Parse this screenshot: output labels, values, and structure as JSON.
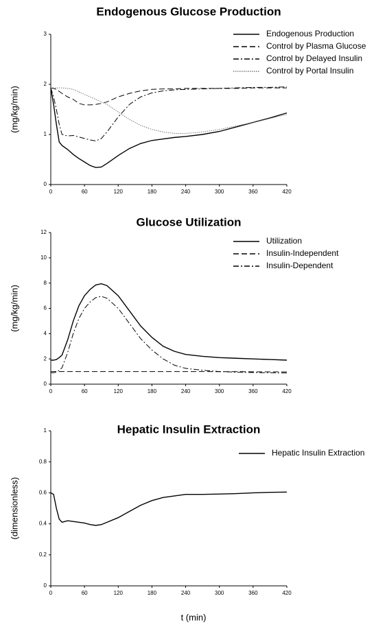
{
  "chart_data": [
    {
      "type": "line",
      "title": "Endogenous Glucose Production",
      "ylabel": "(mg/kg/min)",
      "x": [
        0,
        5,
        10,
        15,
        20,
        30,
        40,
        50,
        60,
        70,
        80,
        90,
        100,
        120,
        140,
        160,
        180,
        200,
        220,
        240,
        270,
        300,
        330,
        360,
        390,
        420
      ],
      "xlim": [
        0,
        420
      ],
      "xticks": [
        0,
        60,
        120,
        180,
        240,
        300,
        360,
        420
      ],
      "ylim": [
        0,
        3
      ],
      "yticks": [
        0,
        1,
        2,
        3
      ],
      "grid": false,
      "legend": "upper right",
      "series": [
        {
          "name": "Endogenous Production",
          "color": "#000000",
          "style": "solid",
          "values": [
            1.93,
            1.6,
            1.2,
            0.85,
            0.78,
            0.7,
            0.6,
            0.52,
            0.45,
            0.38,
            0.34,
            0.35,
            0.42,
            0.58,
            0.72,
            0.82,
            0.88,
            0.91,
            0.94,
            0.96,
            1.0,
            1.06,
            1.15,
            1.24,
            1.33,
            1.43
          ]
        },
        {
          "name": "Control by Plasma Glucose",
          "color": "#000000",
          "style": "dashed",
          "values": [
            1.93,
            1.92,
            1.9,
            1.86,
            1.82,
            1.75,
            1.7,
            1.62,
            1.59,
            1.59,
            1.6,
            1.62,
            1.65,
            1.75,
            1.82,
            1.87,
            1.9,
            1.91,
            1.91,
            1.92,
            1.92,
            1.92,
            1.92,
            1.93,
            1.93,
            1.93
          ]
        },
        {
          "name": "Control by Delayed Insulin",
          "color": "#000000",
          "style": "dashdot",
          "values": [
            1.93,
            1.75,
            1.5,
            1.2,
            1.0,
            0.97,
            0.98,
            0.95,
            0.92,
            0.89,
            0.87,
            0.92,
            1.05,
            1.35,
            1.6,
            1.75,
            1.83,
            1.87,
            1.89,
            1.9,
            1.91,
            1.92,
            1.93,
            1.94,
            1.94,
            1.95
          ]
        },
        {
          "name": "Control by Portal Insulin",
          "color": "#777777",
          "style": "dotted",
          "values": [
            1.93,
            1.93,
            1.93,
            1.93,
            1.93,
            1.92,
            1.9,
            1.85,
            1.8,
            1.75,
            1.7,
            1.65,
            1.6,
            1.45,
            1.3,
            1.18,
            1.1,
            1.05,
            1.02,
            1.02,
            1.05,
            1.1,
            1.17,
            1.24,
            1.32,
            1.4
          ]
        }
      ]
    },
    {
      "type": "line",
      "title": "Glucose Utilization",
      "ylabel": "(mg/kg/min)",
      "x": [
        0,
        5,
        10,
        15,
        20,
        30,
        40,
        50,
        60,
        70,
        80,
        90,
        100,
        120,
        140,
        160,
        180,
        200,
        220,
        240,
        270,
        300,
        330,
        360,
        390,
        420
      ],
      "xlim": [
        0,
        420
      ],
      "xticks": [
        0,
        60,
        120,
        180,
        240,
        300,
        360,
        420
      ],
      "ylim": [
        0,
        12
      ],
      "yticks": [
        0,
        2,
        4,
        6,
        8,
        10,
        12
      ],
      "grid": false,
      "legend": "upper right",
      "series": [
        {
          "name": "Utilization",
          "color": "#000000",
          "style": "solid",
          "values": [
            1.9,
            1.9,
            1.95,
            2.1,
            2.3,
            3.5,
            5.0,
            6.2,
            7.0,
            7.5,
            7.85,
            7.95,
            7.8,
            7.0,
            5.8,
            4.6,
            3.7,
            3.0,
            2.6,
            2.35,
            2.2,
            2.1,
            2.05,
            2.0,
            1.95,
            1.9
          ]
        },
        {
          "name": "Insulin-Independent",
          "color": "#000000",
          "style": "dashed",
          "values": [
            1.0,
            1.0,
            1.0,
            1.0,
            1.0,
            1.0,
            1.0,
            1.0,
            1.0,
            1.0,
            1.0,
            1.0,
            1.0,
            1.0,
            1.0,
            1.0,
            1.0,
            1.0,
            1.0,
            1.0,
            1.0,
            0.99,
            0.99,
            0.98,
            0.98,
            0.97
          ]
        },
        {
          "name": "Insulin-Dependent",
          "color": "#000000",
          "style": "dashdot",
          "values": [
            0.9,
            0.9,
            0.95,
            1.1,
            1.3,
            2.5,
            4.0,
            5.2,
            6.0,
            6.5,
            6.85,
            6.95,
            6.8,
            6.0,
            4.8,
            3.6,
            2.7,
            2.0,
            1.5,
            1.25,
            1.1,
            1.0,
            0.95,
            0.92,
            0.9,
            0.88
          ]
        }
      ]
    },
    {
      "type": "line",
      "title": "Hepatic Insulin Extraction",
      "ylabel": "(dimensionless)",
      "xlabel": "t (min)",
      "x": [
        0,
        5,
        10,
        15,
        20,
        30,
        40,
        50,
        60,
        70,
        80,
        90,
        100,
        120,
        140,
        160,
        180,
        200,
        220,
        240,
        270,
        300,
        330,
        360,
        390,
        420
      ],
      "xlim": [
        0,
        420
      ],
      "xticks": [
        0,
        60,
        120,
        180,
        240,
        300,
        360,
        420
      ],
      "ylim": [
        0,
        1
      ],
      "yticks": [
        0,
        0.2,
        0.4,
        0.6,
        0.8,
        1
      ],
      "grid": false,
      "legend": "upper right",
      "series": [
        {
          "name": "Hepatic Insulin Extraction",
          "color": "#000000",
          "style": "solid",
          "values": [
            0.6,
            0.59,
            0.5,
            0.43,
            0.41,
            0.42,
            0.415,
            0.41,
            0.405,
            0.395,
            0.39,
            0.395,
            0.41,
            0.44,
            0.48,
            0.52,
            0.55,
            0.57,
            0.58,
            0.59,
            0.59,
            0.592,
            0.595,
            0.6,
            0.603,
            0.605
          ]
        }
      ]
    }
  ]
}
